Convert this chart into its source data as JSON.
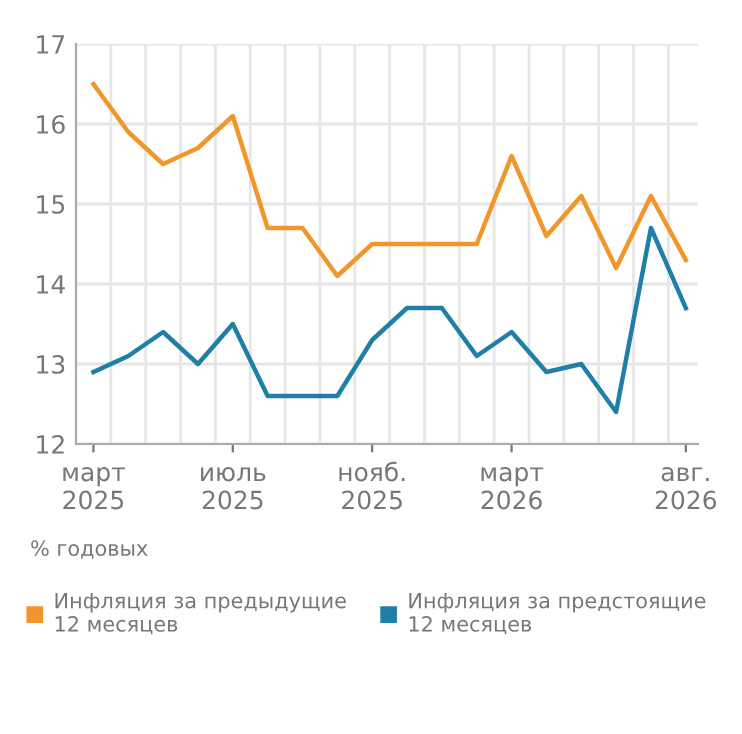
{
  "chart_data": {
    "type": "line",
    "categories": [
      "март\n2025",
      null,
      null,
      null,
      "июль\n2025",
      null,
      null,
      null,
      "нояб.\n2025",
      null,
      null,
      null,
      "март\n2026",
      null,
      null,
      null,
      null,
      "авг.\n2026"
    ],
    "series": [
      {
        "name": "Инфляция за предыдущие\n12 месяцев",
        "color": "#f0962a",
        "values": [
          16.5,
          15.9,
          15.5,
          15.7,
          16.1,
          14.7,
          14.7,
          14.1,
          14.5,
          14.5,
          14.5,
          14.5,
          15.6,
          14.6,
          15.1,
          14.2,
          15.1,
          14.3
        ]
      },
      {
        "name": "Инфляция за предстоящие\n12 месяцев",
        "color": "#1f7fa6",
        "values": [
          12.9,
          13.1,
          13.4,
          13.0,
          13.5,
          12.6,
          12.6,
          12.6,
          13.3,
          13.7,
          13.7,
          13.1,
          13.4,
          12.9,
          13.0,
          12.4,
          14.7,
          13.7
        ]
      }
    ],
    "ylim": [
      12,
      17
    ],
    "yticks": [
      12,
      13,
      14,
      15,
      16,
      17
    ],
    "grid": true,
    "legend": "bottom",
    "marker": "none",
    "line_style": "solid",
    "annotations": [
      "% годовых"
    ]
  }
}
